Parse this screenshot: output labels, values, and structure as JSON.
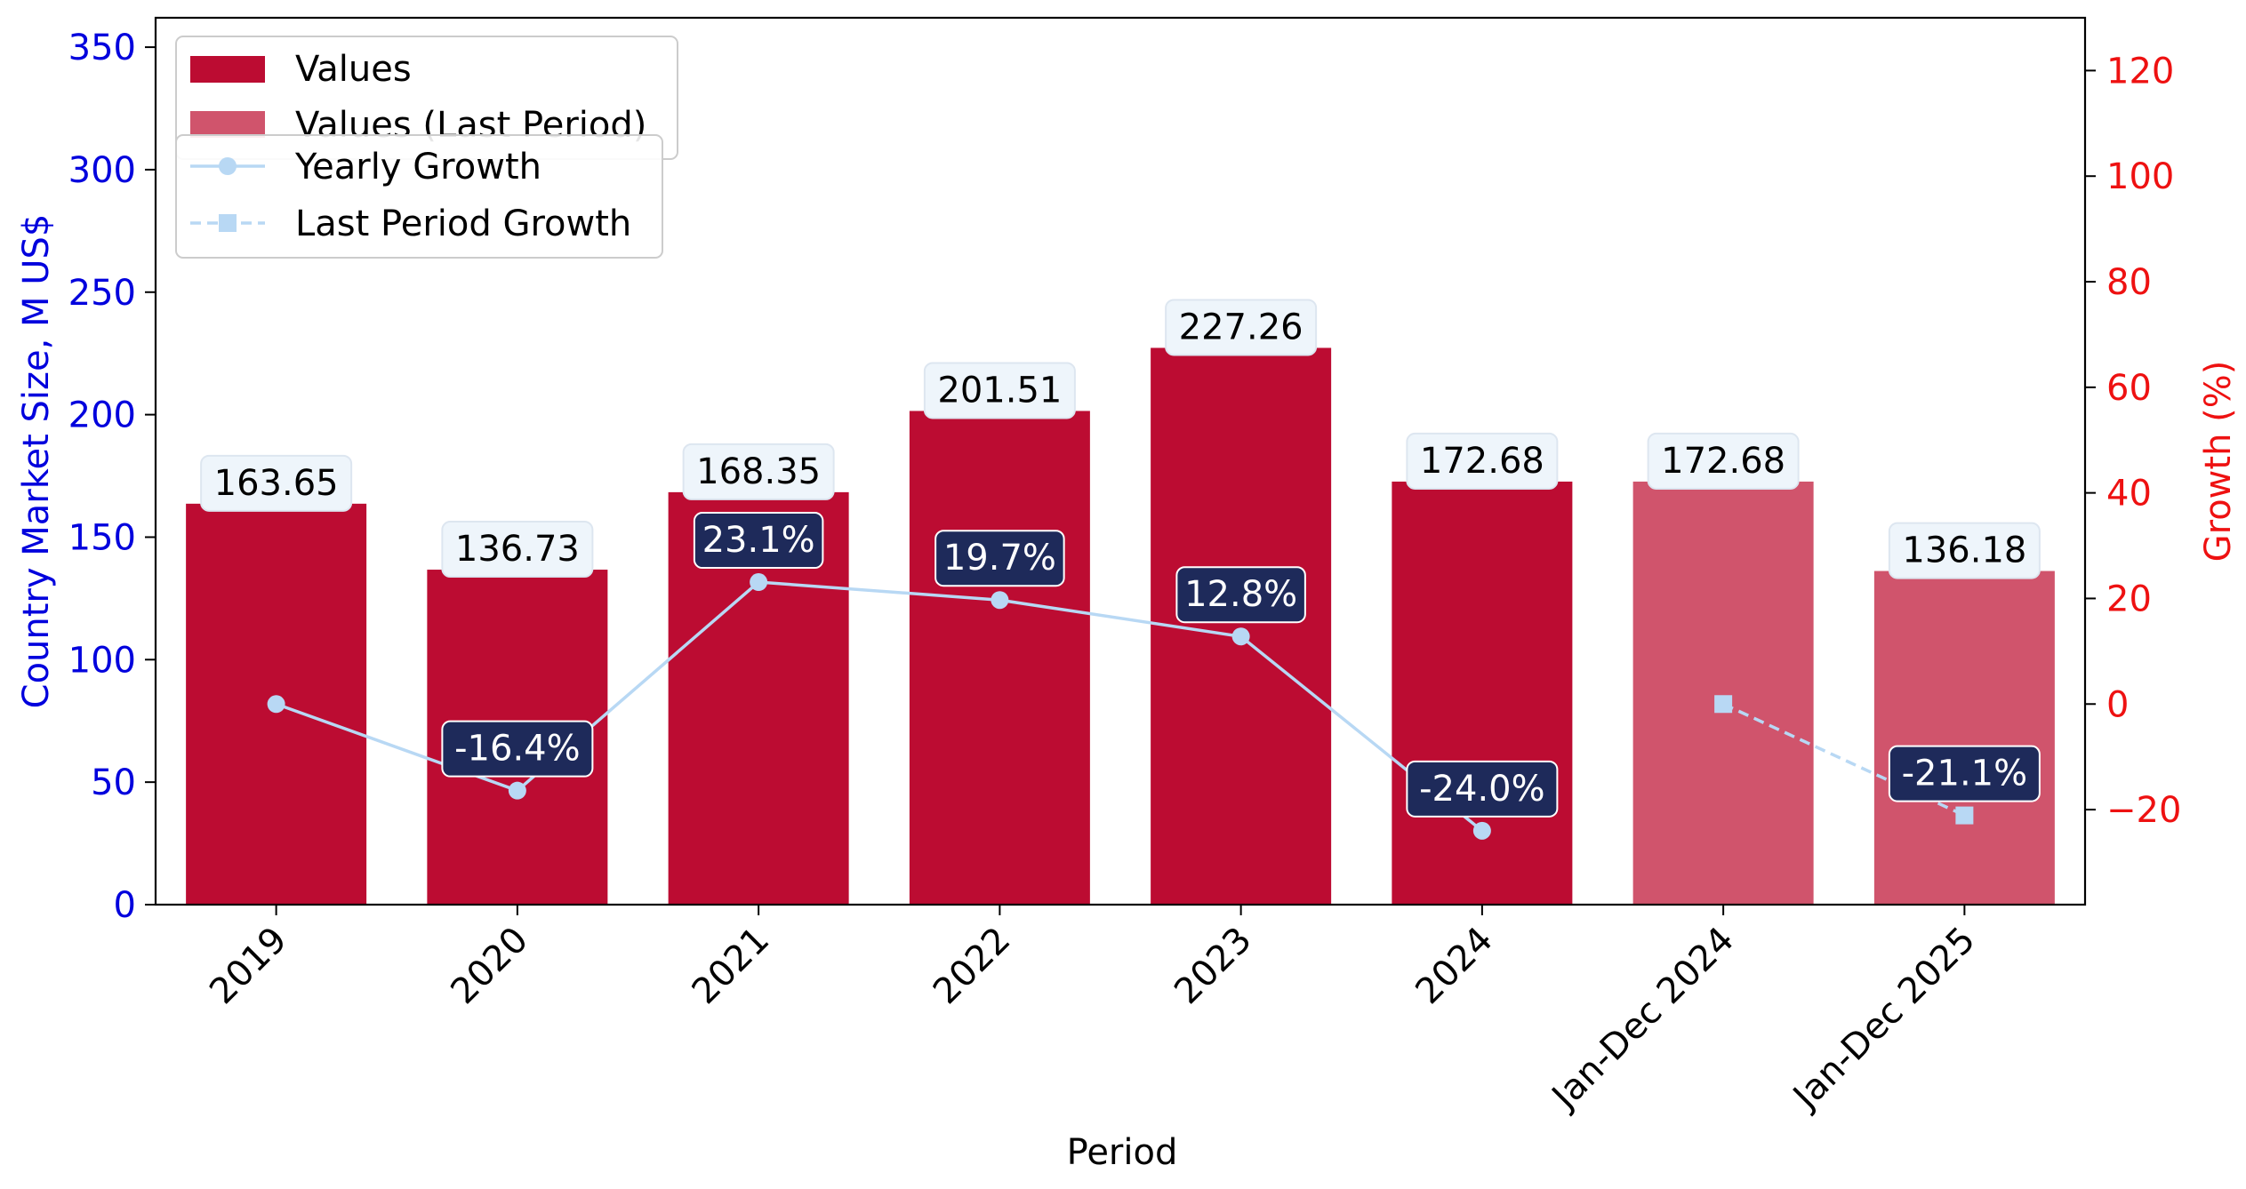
{
  "chart_data": {
    "type": "bar",
    "xlabel": "Period",
    "ylabel_left": "Country Market Size, M US$",
    "ylabel_right": "Growth (%)",
    "categories": [
      "2019",
      "2020",
      "2021",
      "2022",
      "2023",
      "2024",
      "Jan-Dec 2024",
      "Jan-Dec 2025"
    ],
    "ylim_left": [
      0,
      362
    ],
    "ylim_right": [
      -38,
      130
    ],
    "yticks_left": [
      0,
      50,
      100,
      150,
      200,
      250,
      300,
      350
    ],
    "yticks_right": [
      -20,
      0,
      20,
      40,
      60,
      80,
      100,
      120
    ],
    "ytick_labels_right": [
      "−20",
      "0",
      "20",
      "40",
      "60",
      "80",
      "100",
      "120"
    ],
    "bars": [
      {
        "category": "2019",
        "value": 163.65,
        "label": "163.65",
        "series": "Values"
      },
      {
        "category": "2020",
        "value": 136.73,
        "label": "136.73",
        "series": "Values"
      },
      {
        "category": "2021",
        "value": 168.35,
        "label": "168.35",
        "series": "Values"
      },
      {
        "category": "2022",
        "value": 201.51,
        "label": "201.51",
        "series": "Values"
      },
      {
        "category": "2023",
        "value": 227.26,
        "label": "227.26",
        "series": "Values"
      },
      {
        "category": "2024",
        "value": 172.68,
        "label": "172.68",
        "series": "Values"
      },
      {
        "category": "Jan-Dec 2024",
        "value": 172.68,
        "label": "172.68",
        "series": "Values (Last Period)"
      },
      {
        "category": "Jan-Dec 2025",
        "value": 136.18,
        "label": "136.18",
        "series": "Values (Last Period)"
      }
    ],
    "yearly_growth": [
      {
        "category": "2019",
        "value": 0,
        "label": ""
      },
      {
        "category": "2020",
        "value": -16.4,
        "label": "-16.4%"
      },
      {
        "category": "2021",
        "value": 23.1,
        "label": "23.1%"
      },
      {
        "category": "2022",
        "value": 19.7,
        "label": "19.7%"
      },
      {
        "category": "2023",
        "value": 12.8,
        "label": "12.8%"
      },
      {
        "category": "2024",
        "value": -24.0,
        "label": "-24.0%"
      }
    ],
    "last_period_growth": [
      {
        "category": "Jan-Dec 2024",
        "value": 0,
        "label": ""
      },
      {
        "category": "Jan-Dec 2025",
        "value": -21.1,
        "label": "-21.1%"
      }
    ],
    "legend_bars": [
      {
        "name": "Values",
        "color": "#bc0c32"
      },
      {
        "name": "Values (Last Period)",
        "color": "#d0546c"
      }
    ],
    "legend_lines": [
      {
        "name": "Yearly Growth",
        "style": "solid-circle"
      },
      {
        "name": "Last Period Growth",
        "style": "dashed-square"
      }
    ],
    "legend_placement": "top-left",
    "grid": false,
    "colors": {
      "bar": "#bc0c32",
      "bar_last_period": "#d0546c",
      "growth_line": "#b8d8f4",
      "growth_label_bg": "#1e2a5a",
      "value_label_bg": "#eef5fb",
      "left_axis": "#0000dd",
      "right_axis": "#ee1111"
    }
  }
}
